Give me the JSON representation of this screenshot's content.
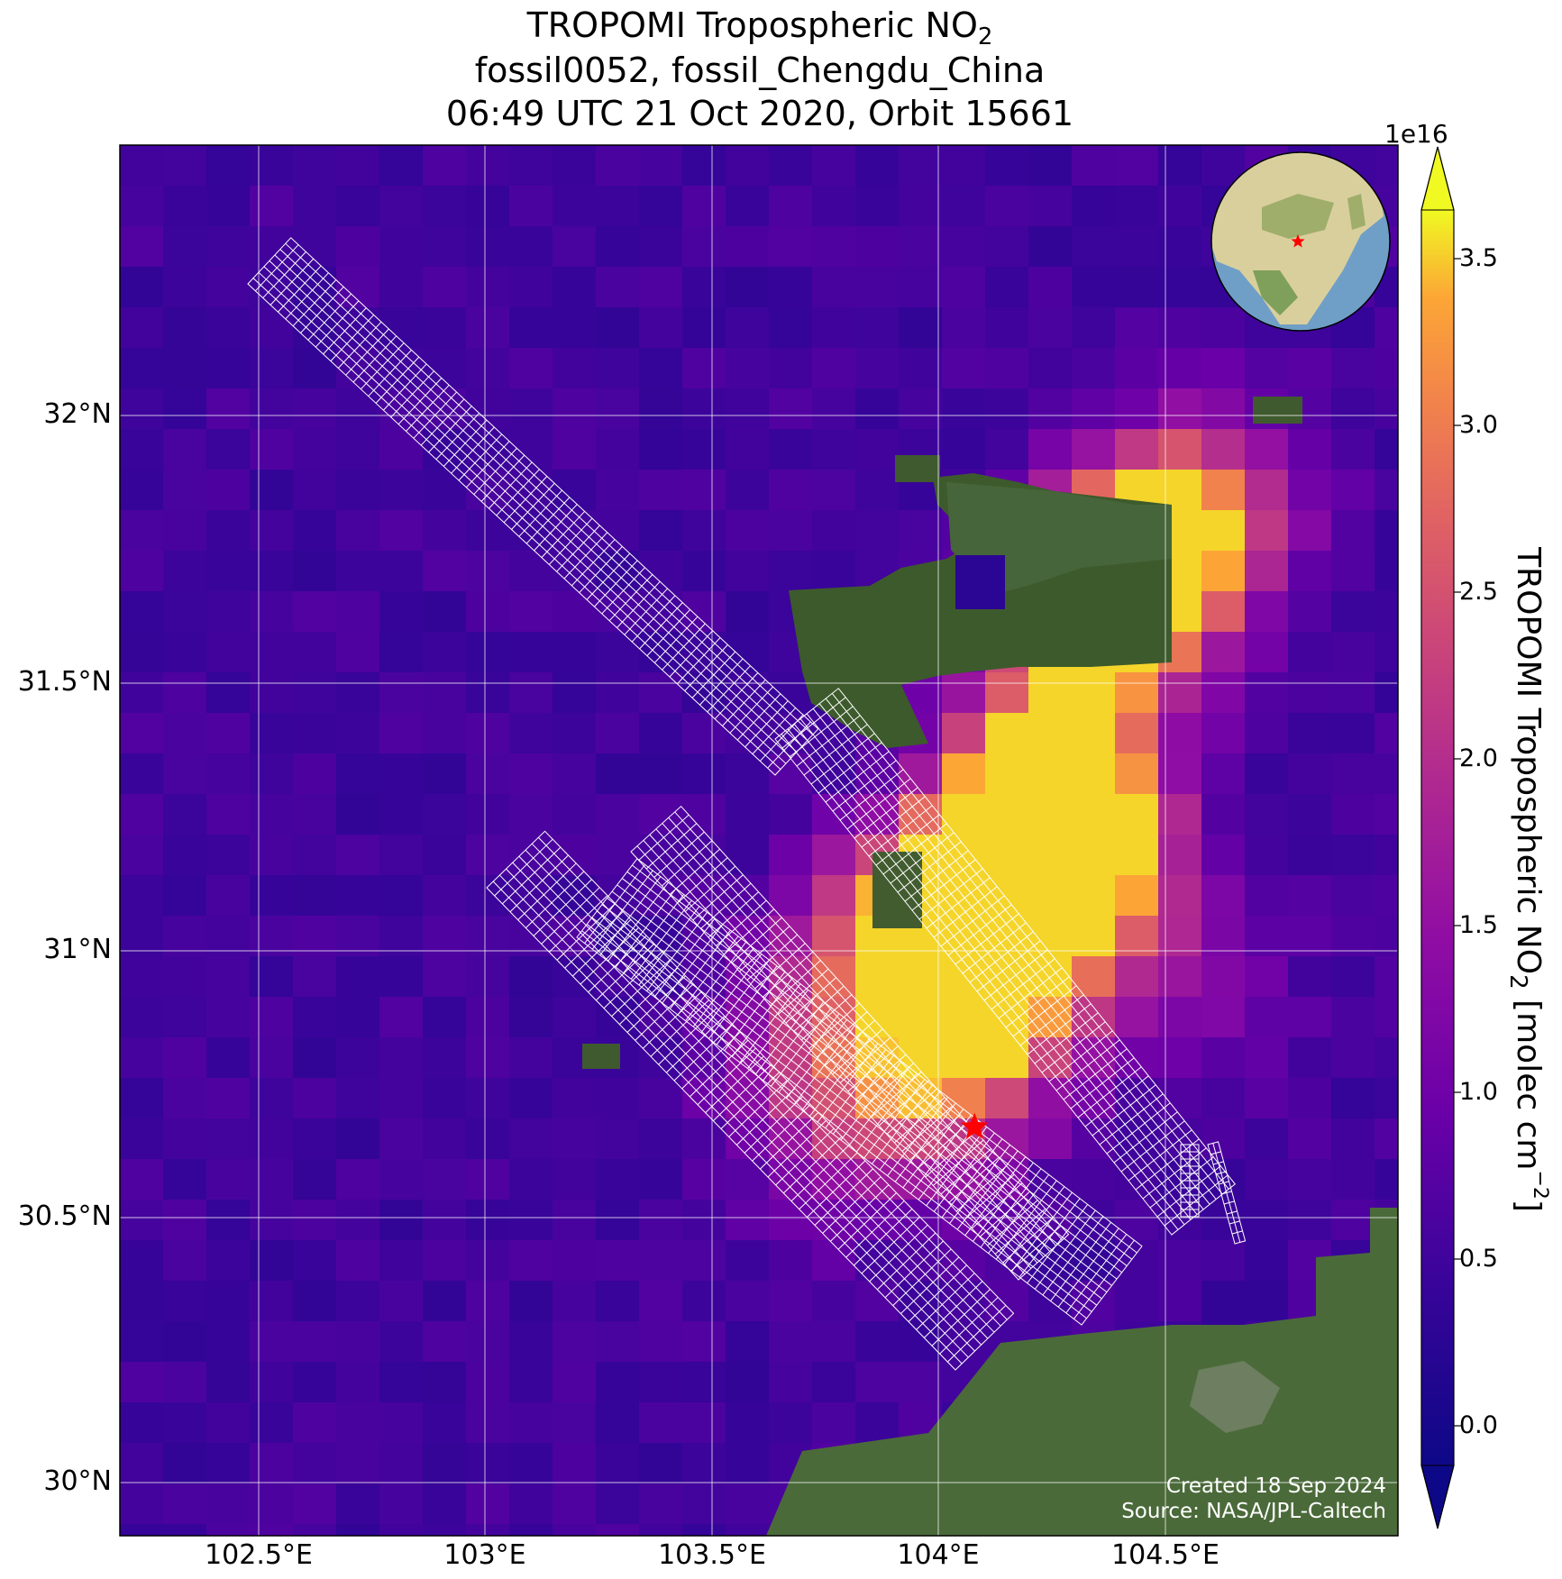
{
  "title": {
    "line1_prefix": "TROPOMI Tropospheric NO",
    "line1_sub": "2",
    "line2": "fossil0052, fossil_Chengdu_China",
    "line3": "06:49 UTC 21 Oct 2020, Orbit 15661"
  },
  "map": {
    "lon_ticks": [
      "102.5°E",
      "103°E",
      "103.5°E",
      "104°E",
      "104.5°E"
    ],
    "lat_ticks": [
      "32°N",
      "31.5°N",
      "31°N",
      "30.5°N",
      "30°N"
    ],
    "gridlines": true,
    "target_marker": {
      "lon": 104.08,
      "lat": 30.67,
      "color": "#ff0000"
    }
  },
  "colorbar": {
    "colormap": "plasma",
    "exponent": "1e16",
    "ticks": [
      "0.0",
      "0.5",
      "1.0",
      "1.5",
      "2.0",
      "2.5",
      "3.0",
      "3.5"
    ],
    "label_prefix": "TROPOMI Tropospheric NO",
    "label_sub": "2",
    "label_mid": " [molec cm",
    "label_sup": "−2",
    "label_suffix": "]",
    "extend": "both"
  },
  "credits": {
    "created": "Created 18 Sep 2024",
    "source": "Source: NASA/JPL-Caltech"
  },
  "inset_globe": {
    "center_region": "East Asia",
    "marker_color": "#ff0000"
  },
  "colors": {
    "gridline": "#ffffff",
    "sounding_outline": "#ffffff",
    "background_field": "#2b0593"
  }
}
